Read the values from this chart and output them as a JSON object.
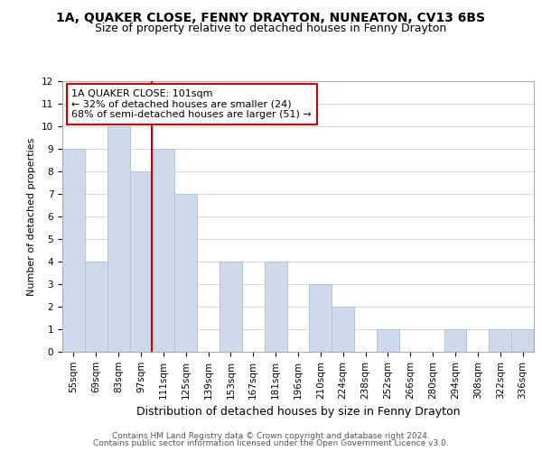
{
  "title": "1A, QUAKER CLOSE, FENNY DRAYTON, NUNEATON, CV13 6BS",
  "subtitle": "Size of property relative to detached houses in Fenny Drayton",
  "xlabel": "Distribution of detached houses by size in Fenny Drayton",
  "ylabel": "Number of detached properties",
  "bin_labels": [
    "55sqm",
    "69sqm",
    "83sqm",
    "97sqm",
    "111sqm",
    "125sqm",
    "139sqm",
    "153sqm",
    "167sqm",
    "181sqm",
    "196sqm",
    "210sqm",
    "224sqm",
    "238sqm",
    "252sqm",
    "266sqm",
    "280sqm",
    "294sqm",
    "308sqm",
    "322sqm",
    "336sqm"
  ],
  "counts": [
    9,
    4,
    10,
    8,
    9,
    7,
    0,
    4,
    0,
    4,
    0,
    3,
    2,
    0,
    1,
    0,
    0,
    1,
    0,
    1,
    1
  ],
  "bar_color": "#ccdaeb",
  "bar_edgecolor": "#b0c4d8",
  "vline_x_index": 3.5,
  "vline_color": "#cc0000",
  "annotation_text": "1A QUAKER CLOSE: 101sqm\n← 32% of detached houses are smaller (24)\n68% of semi-detached houses are larger (51) →",
  "annotation_box_edgecolor": "#cc0000",
  "annotation_box_facecolor": "#ffffff",
  "ylim": [
    0,
    12
  ],
  "yticks": [
    0,
    1,
    2,
    3,
    4,
    5,
    6,
    7,
    8,
    9,
    10,
    11,
    12
  ],
  "footer_line1": "Contains HM Land Registry data © Crown copyright and database right 2024.",
  "footer_line2": "Contains public sector information licensed under the Open Government Licence v3.0.",
  "title_fontsize": 10,
  "subtitle_fontsize": 9,
  "xlabel_fontsize": 9,
  "ylabel_fontsize": 8,
  "tick_fontsize": 7.5,
  "annotation_fontsize": 8,
  "footer_fontsize": 6.5
}
